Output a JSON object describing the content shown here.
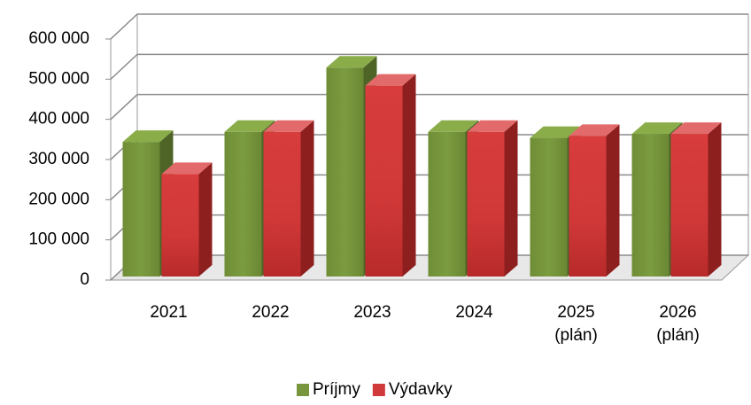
{
  "chart_data": {
    "type": "bar3d",
    "categories": [
      "2021",
      "2022",
      "2023",
      "2024",
      "2025\n(plán)",
      "2026\n(plán)"
    ],
    "series": [
      {
        "name": "Príjmy",
        "color": "#77963d",
        "values": [
          335000,
          360000,
          520000,
          360000,
          345000,
          355000
        ]
      },
      {
        "name": "Výdavky",
        "color": "#d03a3a",
        "values": [
          255000,
          360000,
          475000,
          360000,
          350000,
          355000
        ]
      }
    ],
    "ylim": [
      0,
      600000
    ],
    "yticks": [
      0,
      {
        "value": 100000,
        "label": "100 000"
      },
      {
        "value": 200000,
        "label": "200 000"
      },
      {
        "value": 300000,
        "label": "300 000"
      },
      {
        "value": 400000,
        "label": "400 000"
      },
      {
        "value": 500000,
        "label": "500 000"
      },
      {
        "value": 600000,
        "label": "600 000"
      }
    ],
    "grid": true,
    "legend": "bottom"
  }
}
